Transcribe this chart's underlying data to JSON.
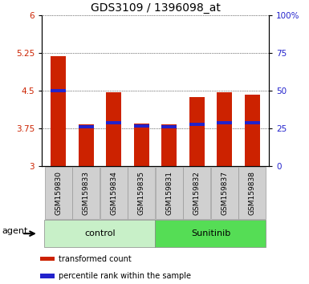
{
  "title": "GDS3109 / 1396098_at",
  "samples": [
    "GSM159830",
    "GSM159833",
    "GSM159834",
    "GSM159835",
    "GSM159831",
    "GSM159832",
    "GSM159837",
    "GSM159838"
  ],
  "red_values": [
    5.19,
    3.83,
    4.47,
    3.85,
    3.84,
    4.38,
    4.47,
    4.42
  ],
  "blue_values": [
    4.5,
    3.78,
    3.87,
    3.8,
    3.79,
    3.83,
    3.86,
    3.86
  ],
  "ymin": 3.0,
  "ymax": 6.0,
  "yticks": [
    3.0,
    3.75,
    4.5,
    5.25,
    6.0
  ],
  "ytick_labels": [
    "3",
    "3.75",
    "4.5",
    "5.25",
    "6"
  ],
  "right_yticks": [
    0,
    25,
    50,
    75,
    100
  ],
  "right_ytick_labels": [
    "0",
    "25",
    "50",
    "75",
    "100%"
  ],
  "groups": [
    {
      "label": "control",
      "indices": [
        0,
        1,
        2,
        3
      ],
      "color": "#c8f0c8"
    },
    {
      "label": "Sunitinib",
      "indices": [
        4,
        5,
        6,
        7
      ],
      "color": "#55dd55"
    }
  ],
  "bar_width": 0.55,
  "bar_color_red": "#cc2200",
  "bar_color_blue": "#2222cc",
  "legend_red": "transformed count",
  "legend_blue": "percentile rank within the sample",
  "agent_label": "agent",
  "grid_color": "#000000",
  "title_fontsize": 10,
  "tick_fontsize": 7.5,
  "sample_fontsize": 6.5,
  "group_fontsize": 8,
  "legend_fontsize": 7
}
